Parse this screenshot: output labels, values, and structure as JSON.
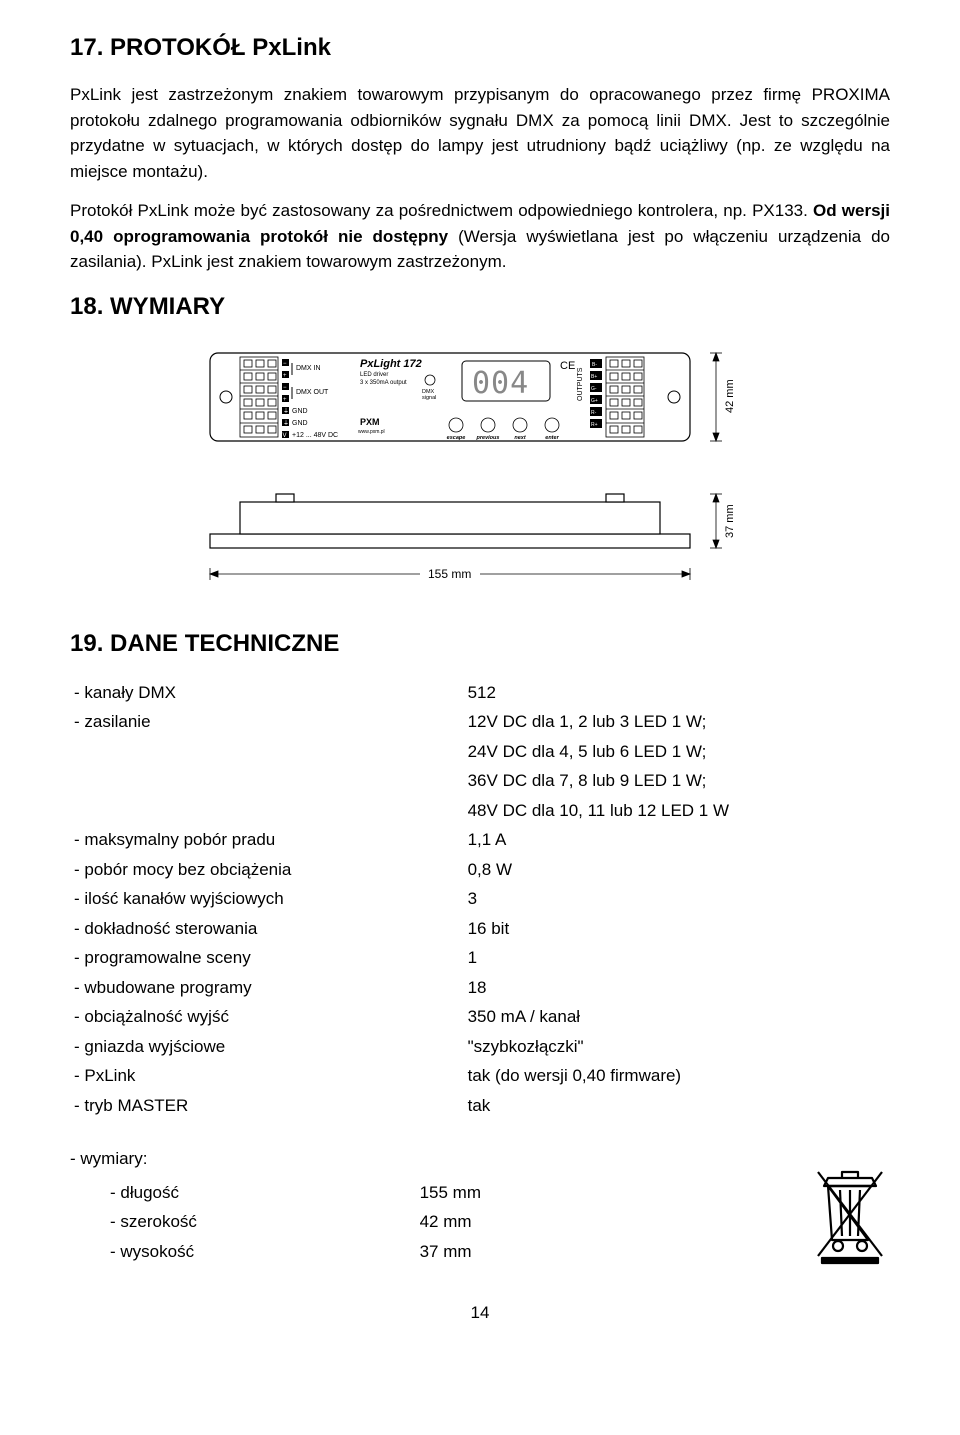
{
  "section17": {
    "title": "17. PROTOKÓŁ PxLink",
    "p1": "PxLink jest zastrzeżonym znakiem towarowym przypisanym do opracowanego przez firmę PROXIMA protokołu zdalnego programowania odbiorników sygnału DMX za pomocą linii DMX. Jest to szczególnie przydatne w sytuacjach, w których dostęp do lampy jest utrudniony bądź uciążliwy (np. ze względu na miejsce montażu).",
    "p2a": "Protokół PxLink może być zastosowany za pośrednictwem odpowiedniego kontrolera, np. PX133. ",
    "p2b": "Od wersji 0,40 oprogramowania protokół nie dostępny ",
    "p2c": "(Wersja wyświetlana jest po włączeniu urządzenia do zasilania). PxLink jest znakiem towarowym zastrzeżonym."
  },
  "section18": {
    "title": "18. WYMIARY",
    "device": {
      "name": "PxLight 172",
      "sub1": "LED driver",
      "sub2": "3 x 350mA output",
      "dmx_signal": "DMX\nsignal",
      "brand": "PXM",
      "url": "www.pxm.pl",
      "labels_left": [
        "DMX IN",
        "DMX OUT",
        "GND",
        "GND",
        "+12 ... 48V DC"
      ],
      "buttons": [
        "escape",
        "previous",
        "next",
        "enter"
      ],
      "outputs_label": "OUTPUTS",
      "outputs": [
        "B-",
        "B+",
        "G-",
        "G+",
        "R-",
        "R+"
      ],
      "width_mm": "155 mm",
      "height_mm": "42 mm",
      "depth_mm": "37 mm"
    }
  },
  "section19": {
    "title": "19. DANE TECHNICZNE",
    "rows": [
      [
        "- kanały DMX",
        "512"
      ],
      [
        "- zasilanie",
        "12V DC dla 1, 2 lub 3 LED 1 W;"
      ],
      [
        "",
        "24V DC dla 4, 5 lub 6 LED 1 W;"
      ],
      [
        "",
        "36V DC dla 7, 8 lub 9 LED 1 W;"
      ],
      [
        "",
        "48V DC dla 10, 11 lub 12 LED 1 W"
      ],
      [
        "- maksymalny pobór pradu",
        "1,1 A"
      ],
      [
        "- pobór mocy bez obciążenia",
        "0,8 W"
      ],
      [
        "- ilość kanałów wyjściowych",
        "3"
      ],
      [
        "- dokładność sterowania",
        "16 bit"
      ],
      [
        "- programowalne sceny",
        "1"
      ],
      [
        "- wbudowane programy",
        "18"
      ],
      [
        "- obciążalność wyjść",
        "350 mA / kanał"
      ],
      [
        "- gniazda wyjściowe",
        "\"szybkozłączki\""
      ],
      [
        "- PxLink",
        "tak (do wersji 0,40 firmware)"
      ],
      [
        "- tryb MASTER",
        "tak"
      ]
    ],
    "dims_label": "- wymiary:",
    "dims": [
      [
        "- długość",
        "155 mm"
      ],
      [
        "- szerokość",
        "42 mm"
      ],
      [
        "- wysokość",
        "37 mm"
      ]
    ]
  },
  "page_number": "14",
  "colors": {
    "text": "#000000",
    "bg": "#ffffff",
    "stroke": "#000000",
    "gray": "#888888"
  }
}
